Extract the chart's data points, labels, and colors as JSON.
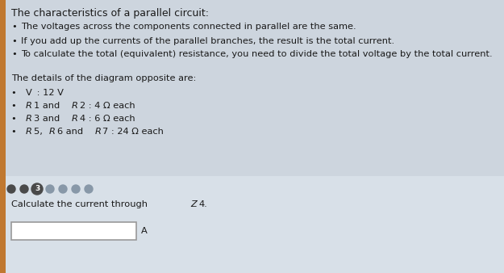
{
  "bg_color": "#cdd5de",
  "bg_bottom_color": "#d8dfe6",
  "text_color": "#1a1a1a",
  "title": "The characteristics of a parallel circuit:",
  "bullets": [
    "The voltages across the components connected in parallel are the same.",
    "If you add up the currents of the parallel branches, the result is the total current.",
    "To calculate the total (equivalent) resistance, you need to divide the total voltage by the total current."
  ],
  "details_header": "The details of the diagram opposite are:",
  "dots_total": 7,
  "dot_active_index": 2,
  "dot_color_filled": "#4a4a4a",
  "dot_color_light": "#8898a8",
  "dot_circled_number": "3",
  "question_plain": "Calculate the current through ",
  "question_italic": "Z",
  "question_num": "4.",
  "answer_unit": "A",
  "left_stripe_color": "#c07830",
  "fs_title": 9.0,
  "fs_body": 8.2,
  "fs_detail": 8.2
}
